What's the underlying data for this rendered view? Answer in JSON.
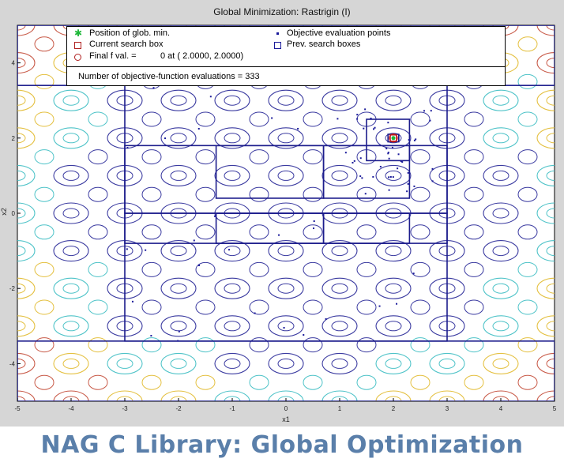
{
  "chart_data": {
    "type": "contour",
    "title": "Global Minimization: Rastrigin (I)",
    "xlabel": "x1",
    "ylabel": "x2",
    "xlim": [
      -5,
      5
    ],
    "ylim": [
      -5,
      5
    ],
    "xticks": [
      "-5",
      "-4",
      "-3",
      "-2",
      "-1",
      "0",
      "1",
      "2",
      "3",
      "4",
      "5"
    ],
    "yticks": [
      "4",
      "2",
      "0",
      "-2",
      "-4"
    ],
    "legend": {
      "position_of_glob_min": "Position of glob. min.",
      "current_search_box": "Current search box",
      "final_f_val": "Final f val. =",
      "final_value_text": "0 at ( 2.0000, 2.0000)",
      "objective_points": "Objective evaluation points",
      "prev_search_boxes": "Prev. search boxes",
      "evaluations": "Number of objective-function evaluations = 333"
    },
    "global_min": [
      2,
      2
    ],
    "contour_colors": [
      "#3a3aa0",
      "#4ec3c8",
      "#e4c040",
      "#c85a48"
    ],
    "search_boxes": [
      [
        -5,
        5,
        3.4,
        5
      ],
      [
        -3,
        3,
        -3.4,
        3.4
      ],
      [
        -5,
        5,
        -5,
        -3.4
      ],
      [
        -3,
        3,
        0,
        1.8
      ],
      [
        -3,
        3,
        -0.8,
        0
      ],
      [
        -1.3,
        0.7,
        0.4,
        1.8
      ],
      [
        -1.3,
        0.7,
        -0.8,
        0
      ],
      [
        0.7,
        2.3,
        0.4,
        1.8
      ],
      [
        0.7,
        2.3,
        -0.8,
        0
      ],
      [
        1.5,
        2.3,
        1.4,
        2.5
      ],
      [
        1.9,
        2.1,
        1.9,
        2.1
      ]
    ]
  },
  "caption": "NAG C Library: Global Optimization"
}
